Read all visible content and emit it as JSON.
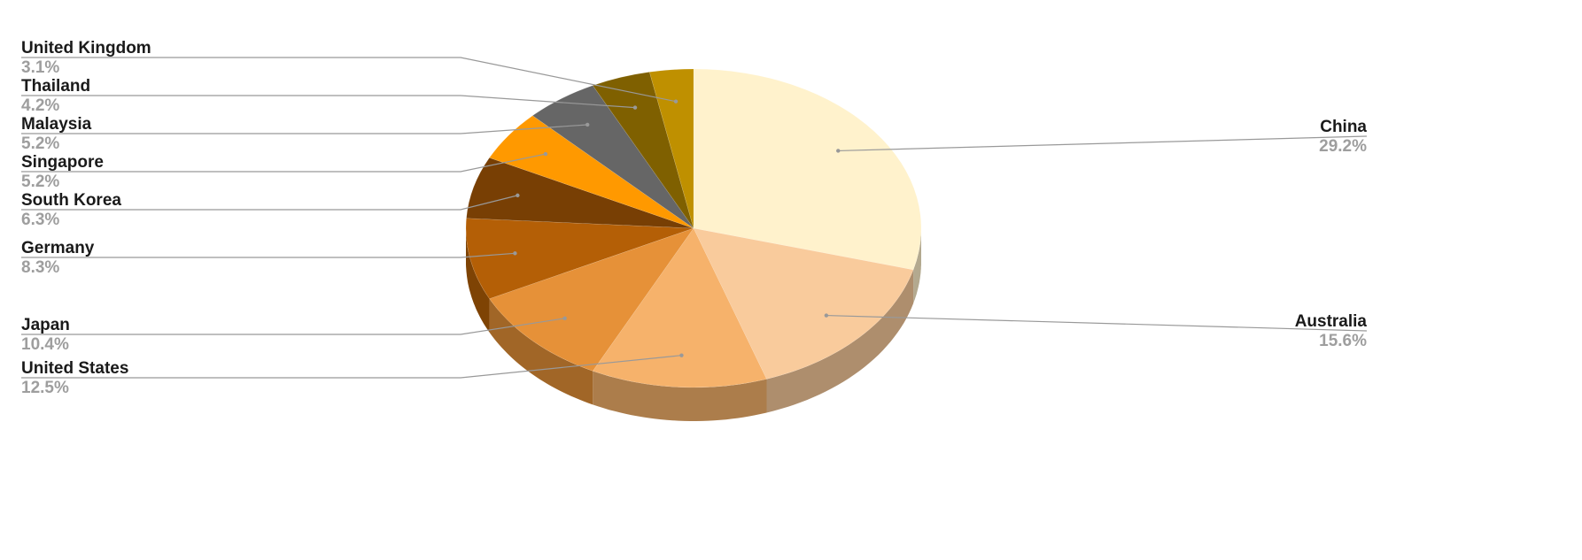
{
  "chart_data": {
    "type": "pie",
    "style": "3d",
    "start": "top, clockwise",
    "legend": "none (leader-line labels)",
    "slices": [
      {
        "label": "China",
        "value": 29.2,
        "display": "29.2%",
        "color": "#fff2cc"
      },
      {
        "label": "Australia",
        "value": 15.6,
        "display": "15.6%",
        "color": "#f9cb9c"
      },
      {
        "label": "United States",
        "value": 12.5,
        "display": "12.5%",
        "color": "#f6b26b"
      },
      {
        "label": "Japan",
        "value": 10.4,
        "display": "10.4%",
        "color": "#e69138"
      },
      {
        "label": "Germany",
        "value": 8.3,
        "display": "8.3%",
        "color": "#b45f06"
      },
      {
        "label": "South Korea",
        "value": 6.3,
        "display": "6.3%",
        "color": "#783f04"
      },
      {
        "label": "Singapore",
        "value": 5.2,
        "display": "5.2%",
        "color": "#ff9900"
      },
      {
        "label": "Malaysia",
        "value": 5.2,
        "display": "5.2%",
        "color": "#666666"
      },
      {
        "label": "Thailand",
        "value": 4.2,
        "display": "4.2%",
        "color": "#7f6000"
      },
      {
        "label": "United Kingdom",
        "value": 3.1,
        "display": "3.1%",
        "color": "#bf9000"
      }
    ]
  }
}
